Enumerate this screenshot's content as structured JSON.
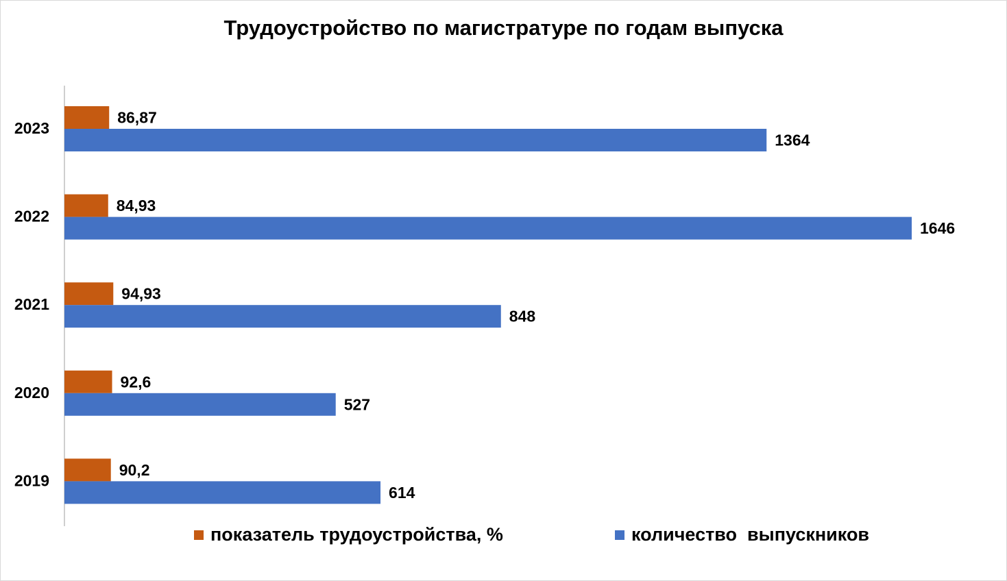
{
  "chart_data": {
    "type": "bar",
    "orientation": "horizontal",
    "title": "Трудоустройство по магистратуре по годам выпуска",
    "categories": [
      "2023",
      "2022",
      "2021",
      "2020",
      "2019"
    ],
    "series": [
      {
        "name": "показатель трудоустройства, %",
        "color": "#c55a11",
        "values": [
          86.87,
          84.93,
          94.93,
          92.6,
          90.2
        ],
        "labels": [
          "86,87",
          "84,93",
          "94,93",
          "92,6",
          "90,2"
        ]
      },
      {
        "name": "количество  выпускников",
        "color": "#4472c4",
        "values": [
          1364,
          1646,
          848,
          527,
          614
        ],
        "labels": [
          "1364",
          "1646",
          "848",
          "527",
          "614"
        ]
      }
    ],
    "xlim": [
      0,
      1700
    ],
    "grid": false,
    "legend_position": "bottom"
  }
}
